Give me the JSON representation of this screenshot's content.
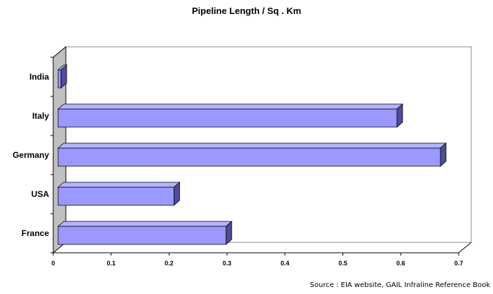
{
  "chart_data": {
    "type": "bar",
    "orientation": "horizontal",
    "title": "Pipeline Length / Sq . Km",
    "categories": [
      "France",
      "USA",
      "Germany",
      "Italy",
      "India"
    ],
    "values": [
      0.29,
      0.2,
      0.66,
      0.585,
      0.005
    ],
    "xlim": [
      0,
      0.7
    ],
    "xticks": [
      "0",
      "0.1",
      "0.2",
      "0.3",
      "0.4",
      "0.5",
      "0.6",
      "0.7"
    ],
    "xlabel": "",
    "ylabel": "",
    "grid": false,
    "legend": "none",
    "style": "3d",
    "colors": {
      "bar_front": "#9999ff",
      "bar_top": "#b3b3ff",
      "bar_side": "#4d4d99",
      "wall": "#c0c0c0",
      "outline": "#000000"
    }
  },
  "footer": {
    "source": "Source : EIA website, GAIL Infraline Reference Book"
  }
}
